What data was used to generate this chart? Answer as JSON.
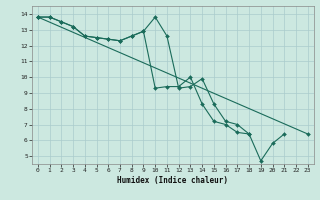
{
  "xlabel": "Humidex (Indice chaleur)",
  "xlim": [
    -0.5,
    23.5
  ],
  "ylim": [
    4.5,
    14.5
  ],
  "xticks": [
    0,
    1,
    2,
    3,
    4,
    5,
    6,
    7,
    8,
    9,
    10,
    11,
    12,
    13,
    14,
    15,
    16,
    17,
    18,
    19,
    20,
    21,
    22,
    23
  ],
  "yticks": [
    5,
    6,
    7,
    8,
    9,
    10,
    11,
    12,
    13,
    14
  ],
  "bg_color": "#cce8e0",
  "line_color": "#1a6b5a",
  "grid_color": "#aacccc",
  "series": [
    {
      "x": [
        0,
        1,
        2,
        3,
        4,
        5,
        6,
        7,
        8,
        9,
        10,
        11,
        12,
        13,
        14,
        15,
        16,
        17,
        18,
        19,
        20,
        21
      ],
      "y": [
        13.8,
        13.8,
        13.5,
        13.2,
        12.6,
        12.5,
        12.4,
        12.3,
        12.6,
        12.9,
        13.8,
        12.6,
        9.3,
        9.4,
        9.9,
        8.3,
        7.2,
        7.0,
        6.4,
        4.7,
        5.8,
        6.4
      ]
    },
    {
      "x": [
        0,
        1,
        2,
        3,
        4,
        5,
        6,
        7,
        8,
        9,
        10,
        11,
        12,
        13,
        14,
        15,
        16,
        17,
        18
      ],
      "y": [
        13.8,
        13.8,
        13.5,
        13.2,
        12.6,
        12.5,
        12.4,
        12.3,
        12.6,
        12.9,
        9.3,
        9.4,
        9.4,
        10.0,
        8.3,
        7.2,
        7.0,
        6.5,
        6.4
      ]
    },
    {
      "x": [
        0,
        23
      ],
      "y": [
        13.8,
        6.4
      ]
    }
  ]
}
